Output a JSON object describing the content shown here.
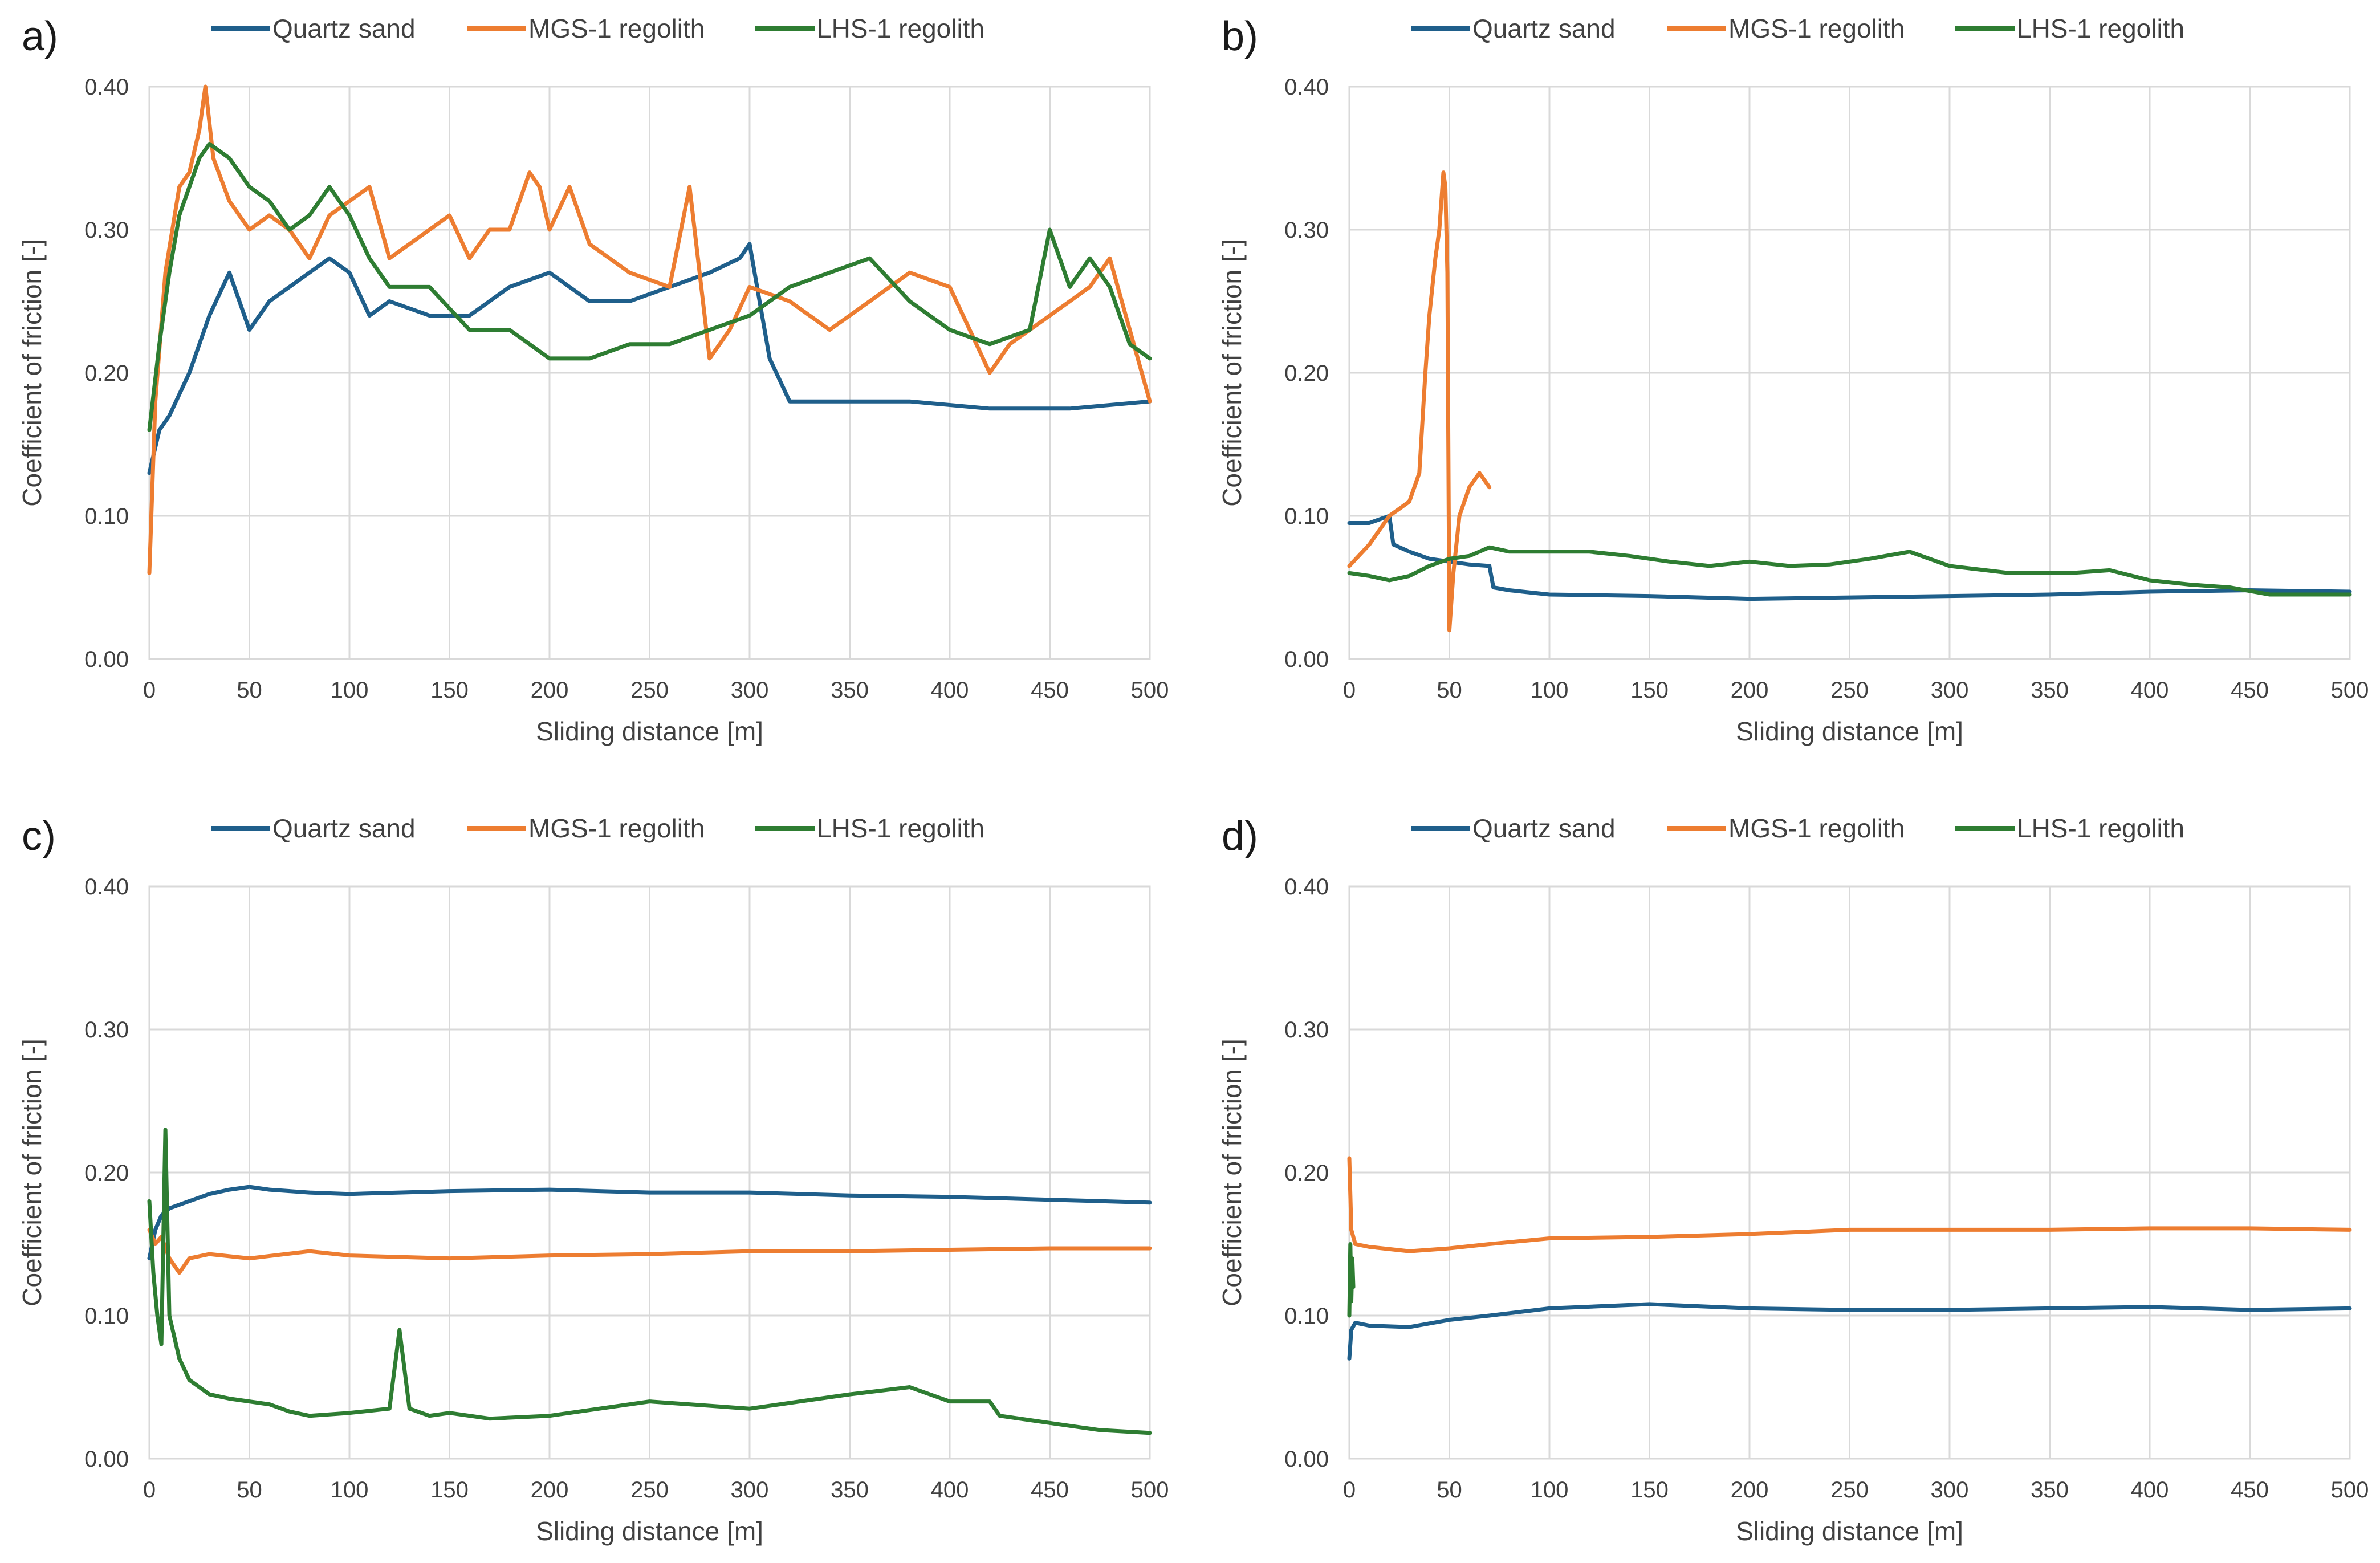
{
  "colors": {
    "quartz": "#1f5f8b",
    "mgs": "#ed7d31",
    "lhs": "#2e7d32"
  },
  "chart_data": [
    {
      "type": "line",
      "panel": "a)",
      "xlabel": "Sliding distance [m]",
      "ylabel": "Coefficient of friction [-]",
      "xlim": [
        0,
        500
      ],
      "ylim": [
        0,
        0.4
      ],
      "xticks": [
        "0",
        "50",
        "100",
        "150",
        "200",
        "250",
        "300",
        "350",
        "400",
        "450",
        "500"
      ],
      "yticks": [
        "0.00",
        "0.10",
        "0.20",
        "0.30",
        "0.40"
      ],
      "grid": true,
      "legend_position": "top",
      "series": [
        {
          "name": "Quartz sand",
          "color_key": "quartz",
          "x": [
            0,
            5,
            10,
            20,
            30,
            40,
            50,
            60,
            70,
            80,
            90,
            100,
            110,
            120,
            140,
            160,
            180,
            200,
            220,
            240,
            260,
            280,
            295,
            300,
            305,
            310,
            320,
            340,
            380,
            420,
            460,
            500
          ],
          "y": [
            0.13,
            0.16,
            0.17,
            0.2,
            0.24,
            0.27,
            0.23,
            0.25,
            0.26,
            0.27,
            0.28,
            0.27,
            0.24,
            0.25,
            0.24,
            0.24,
            0.26,
            0.27,
            0.25,
            0.25,
            0.26,
            0.27,
            0.28,
            0.29,
            0.25,
            0.21,
            0.18,
            0.18,
            0.18,
            0.175,
            0.175,
            0.18
          ]
        },
        {
          "name": "MGS-1 regolith",
          "color_key": "mgs",
          "x": [
            0,
            3,
            8,
            15,
            20,
            25,
            28,
            32,
            40,
            50,
            60,
            70,
            80,
            90,
            100,
            110,
            120,
            130,
            140,
            150,
            160,
            170,
            180,
            190,
            195,
            200,
            210,
            220,
            240,
            260,
            270,
            280,
            290,
            300,
            320,
            340,
            360,
            380,
            400,
            420,
            430,
            450,
            470,
            480,
            490,
            500
          ],
          "y": [
            0.06,
            0.18,
            0.27,
            0.33,
            0.34,
            0.37,
            0.4,
            0.35,
            0.32,
            0.3,
            0.31,
            0.3,
            0.28,
            0.31,
            0.32,
            0.33,
            0.28,
            0.29,
            0.3,
            0.31,
            0.28,
            0.3,
            0.3,
            0.34,
            0.33,
            0.3,
            0.33,
            0.29,
            0.27,
            0.26,
            0.33,
            0.21,
            0.23,
            0.26,
            0.25,
            0.23,
            0.25,
            0.27,
            0.26,
            0.2,
            0.22,
            0.24,
            0.26,
            0.28,
            0.23,
            0.18
          ]
        },
        {
          "name": "LHS-1 regolith",
          "color_key": "lhs",
          "x": [
            0,
            5,
            10,
            15,
            20,
            25,
            30,
            40,
            50,
            60,
            70,
            80,
            90,
            100,
            110,
            120,
            140,
            160,
            180,
            200,
            220,
            240,
            260,
            280,
            300,
            320,
            340,
            360,
            380,
            400,
            420,
            440,
            450,
            460,
            470,
            480,
            490,
            500
          ],
          "y": [
            0.16,
            0.22,
            0.27,
            0.31,
            0.33,
            0.35,
            0.36,
            0.35,
            0.33,
            0.32,
            0.3,
            0.31,
            0.33,
            0.31,
            0.28,
            0.26,
            0.26,
            0.23,
            0.23,
            0.21,
            0.21,
            0.22,
            0.22,
            0.23,
            0.24,
            0.26,
            0.27,
            0.28,
            0.25,
            0.23,
            0.22,
            0.23,
            0.3,
            0.26,
            0.28,
            0.26,
            0.22,
            0.21
          ]
        }
      ]
    },
    {
      "type": "line",
      "panel": "b)",
      "xlabel": "Sliding distance [m]",
      "ylabel": "Coefficient of friction [-]",
      "xlim": [
        0,
        500
      ],
      "ylim": [
        0,
        0.4
      ],
      "xticks": [
        "0",
        "50",
        "100",
        "150",
        "200",
        "250",
        "300",
        "350",
        "400",
        "450",
        "500"
      ],
      "yticks": [
        "0.00",
        "0.10",
        "0.20",
        "0.30",
        "0.40"
      ],
      "grid": true,
      "legend_position": "top",
      "series": [
        {
          "name": "Quartz sand",
          "color_key": "quartz",
          "x": [
            0,
            10,
            20,
            22,
            30,
            40,
            50,
            60,
            70,
            72,
            80,
            100,
            150,
            200,
            250,
            300,
            350,
            400,
            450,
            500
          ],
          "y": [
            0.095,
            0.095,
            0.1,
            0.08,
            0.075,
            0.07,
            0.068,
            0.066,
            0.065,
            0.05,
            0.048,
            0.045,
            0.044,
            0.042,
            0.043,
            0.044,
            0.045,
            0.047,
            0.048,
            0.047
          ]
        },
        {
          "name": "MGS-1 regolith",
          "color_key": "mgs",
          "x": [
            0,
            10,
            20,
            25,
            30,
            35,
            38,
            40,
            43,
            45,
            47,
            48,
            49,
            50,
            52,
            55,
            60,
            65,
            70
          ],
          "y": [
            0.065,
            0.08,
            0.1,
            0.105,
            0.11,
            0.13,
            0.2,
            0.24,
            0.28,
            0.3,
            0.34,
            0.33,
            0.27,
            0.02,
            0.06,
            0.1,
            0.12,
            0.13,
            0.12
          ]
        },
        {
          "name": "LHS-1 regolith",
          "color_key": "lhs",
          "x": [
            0,
            10,
            20,
            30,
            40,
            50,
            60,
            70,
            80,
            100,
            120,
            140,
            160,
            180,
            200,
            220,
            240,
            260,
            280,
            300,
            330,
            360,
            380,
            400,
            420,
            440,
            460,
            480,
            500
          ],
          "y": [
            0.06,
            0.058,
            0.055,
            0.058,
            0.065,
            0.07,
            0.072,
            0.078,
            0.075,
            0.075,
            0.075,
            0.072,
            0.068,
            0.065,
            0.068,
            0.065,
            0.066,
            0.07,
            0.075,
            0.065,
            0.06,
            0.06,
            0.062,
            0.055,
            0.052,
            0.05,
            0.045,
            0.045,
            0.045
          ]
        }
      ]
    },
    {
      "type": "line",
      "panel": "c)",
      "xlabel": "Sliding distance [m]",
      "ylabel": "Coefficient of friction [-]",
      "xlim": [
        0,
        500
      ],
      "ylim": [
        0,
        0.4
      ],
      "xticks": [
        "0",
        "50",
        "100",
        "150",
        "200",
        "250",
        "300",
        "350",
        "400",
        "450",
        "500"
      ],
      "yticks": [
        "0.00",
        "0.10",
        "0.20",
        "0.30",
        "0.40"
      ],
      "grid": true,
      "legend_position": "top",
      "series": [
        {
          "name": "Quartz sand",
          "color_key": "quartz",
          "x": [
            0,
            3,
            6,
            10,
            20,
            30,
            40,
            50,
            60,
            80,
            100,
            150,
            200,
            250,
            300,
            350,
            400,
            450,
            500
          ],
          "y": [
            0.14,
            0.16,
            0.17,
            0.175,
            0.18,
            0.185,
            0.188,
            0.19,
            0.188,
            0.186,
            0.185,
            0.187,
            0.188,
            0.186,
            0.186,
            0.184,
            0.183,
            0.181,
            0.179
          ]
        },
        {
          "name": "MGS-1 regolith",
          "color_key": "mgs",
          "x": [
            0,
            3,
            6,
            10,
            15,
            20,
            30,
            50,
            80,
            100,
            150,
            200,
            250,
            300,
            350,
            400,
            450,
            500
          ],
          "y": [
            0.16,
            0.15,
            0.155,
            0.14,
            0.13,
            0.14,
            0.143,
            0.14,
            0.145,
            0.142,
            0.14,
            0.142,
            0.143,
            0.145,
            0.145,
            0.146,
            0.147,
            0.147
          ]
        },
        {
          "name": "LHS-1 regolith",
          "color_key": "lhs",
          "x": [
            0,
            2,
            4,
            6,
            8,
            10,
            15,
            20,
            30,
            40,
            50,
            60,
            70,
            80,
            100,
            120,
            125,
            130,
            140,
            150,
            160,
            170,
            200,
            250,
            300,
            350,
            380,
            400,
            420,
            425,
            450,
            475,
            500
          ],
          "y": [
            0.18,
            0.13,
            0.1,
            0.08,
            0.23,
            0.1,
            0.07,
            0.055,
            0.045,
            0.042,
            0.04,
            0.038,
            0.033,
            0.03,
            0.032,
            0.035,
            0.09,
            0.035,
            0.03,
            0.032,
            0.03,
            0.028,
            0.03,
            0.04,
            0.035,
            0.045,
            0.05,
            0.04,
            0.04,
            0.03,
            0.025,
            0.02,
            0.018
          ]
        }
      ]
    },
    {
      "type": "line",
      "panel": "d)",
      "xlabel": "Sliding distance [m]",
      "ylabel": "Coefficient of friction [-]",
      "xlim": [
        0,
        500
      ],
      "ylim": [
        0,
        0.4
      ],
      "xticks": [
        "0",
        "50",
        "100",
        "150",
        "200",
        "250",
        "300",
        "350",
        "400",
        "450",
        "500"
      ],
      "yticks": [
        "0.00",
        "0.10",
        "0.20",
        "0.30",
        "0.40"
      ],
      "grid": true,
      "legend_position": "top",
      "series": [
        {
          "name": "Quartz sand",
          "color_key": "quartz",
          "x": [
            0,
            1,
            3,
            10,
            30,
            50,
            70,
            100,
            150,
            200,
            250,
            300,
            350,
            400,
            450,
            500
          ],
          "y": [
            0.07,
            0.09,
            0.095,
            0.093,
            0.092,
            0.097,
            0.1,
            0.105,
            0.108,
            0.105,
            0.104,
            0.104,
            0.105,
            0.106,
            0.104,
            0.105
          ]
        },
        {
          "name": "MGS-1 regolith",
          "color_key": "mgs",
          "x": [
            0,
            1,
            3,
            10,
            30,
            50,
            70,
            100,
            150,
            200,
            250,
            300,
            350,
            400,
            450,
            500
          ],
          "y": [
            0.21,
            0.16,
            0.15,
            0.148,
            0.145,
            0.147,
            0.15,
            0.154,
            0.155,
            0.157,
            0.16,
            0.16,
            0.16,
            0.161,
            0.161,
            0.16
          ]
        },
        {
          "name": "LHS-1 regolith",
          "color_key": "lhs",
          "x": [
            0,
            0.5,
            1,
            1.5,
            2
          ],
          "y": [
            0.1,
            0.15,
            0.11,
            0.14,
            0.12
          ]
        }
      ]
    }
  ]
}
